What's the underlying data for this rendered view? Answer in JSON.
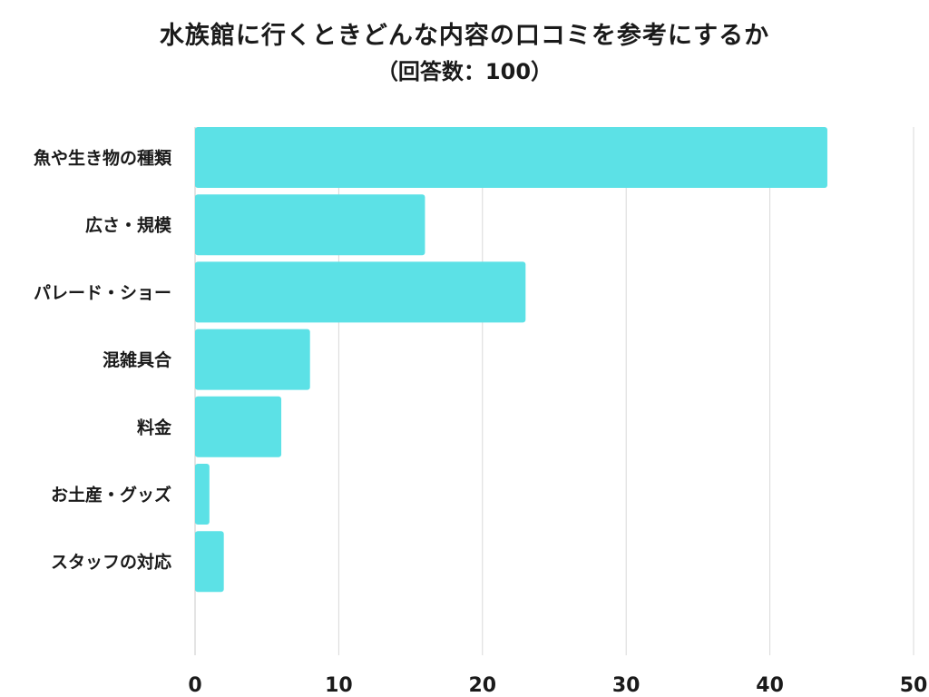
{
  "chart_data": {
    "type": "bar",
    "orientation": "horizontal",
    "title": "水族館に行くときどんな内容の口コミを参考にするか",
    "subtitle": "（回答数：100）",
    "categories": [
      "魚や生き物の種類",
      "広さ・規模",
      "パレード・ショー",
      "混雑具合",
      "料金",
      "お土産・グッズ",
      "スタッフの対応"
    ],
    "values": [
      44,
      16,
      23,
      8,
      6,
      1,
      2
    ],
    "xlim": [
      0,
      50
    ],
    "xticks": [
      0,
      10,
      20,
      30,
      40,
      50
    ],
    "grid": "vertical",
    "legend": "none",
    "bar_color": "#5ce1e6",
    "grid_color": "#d9d9d9"
  }
}
